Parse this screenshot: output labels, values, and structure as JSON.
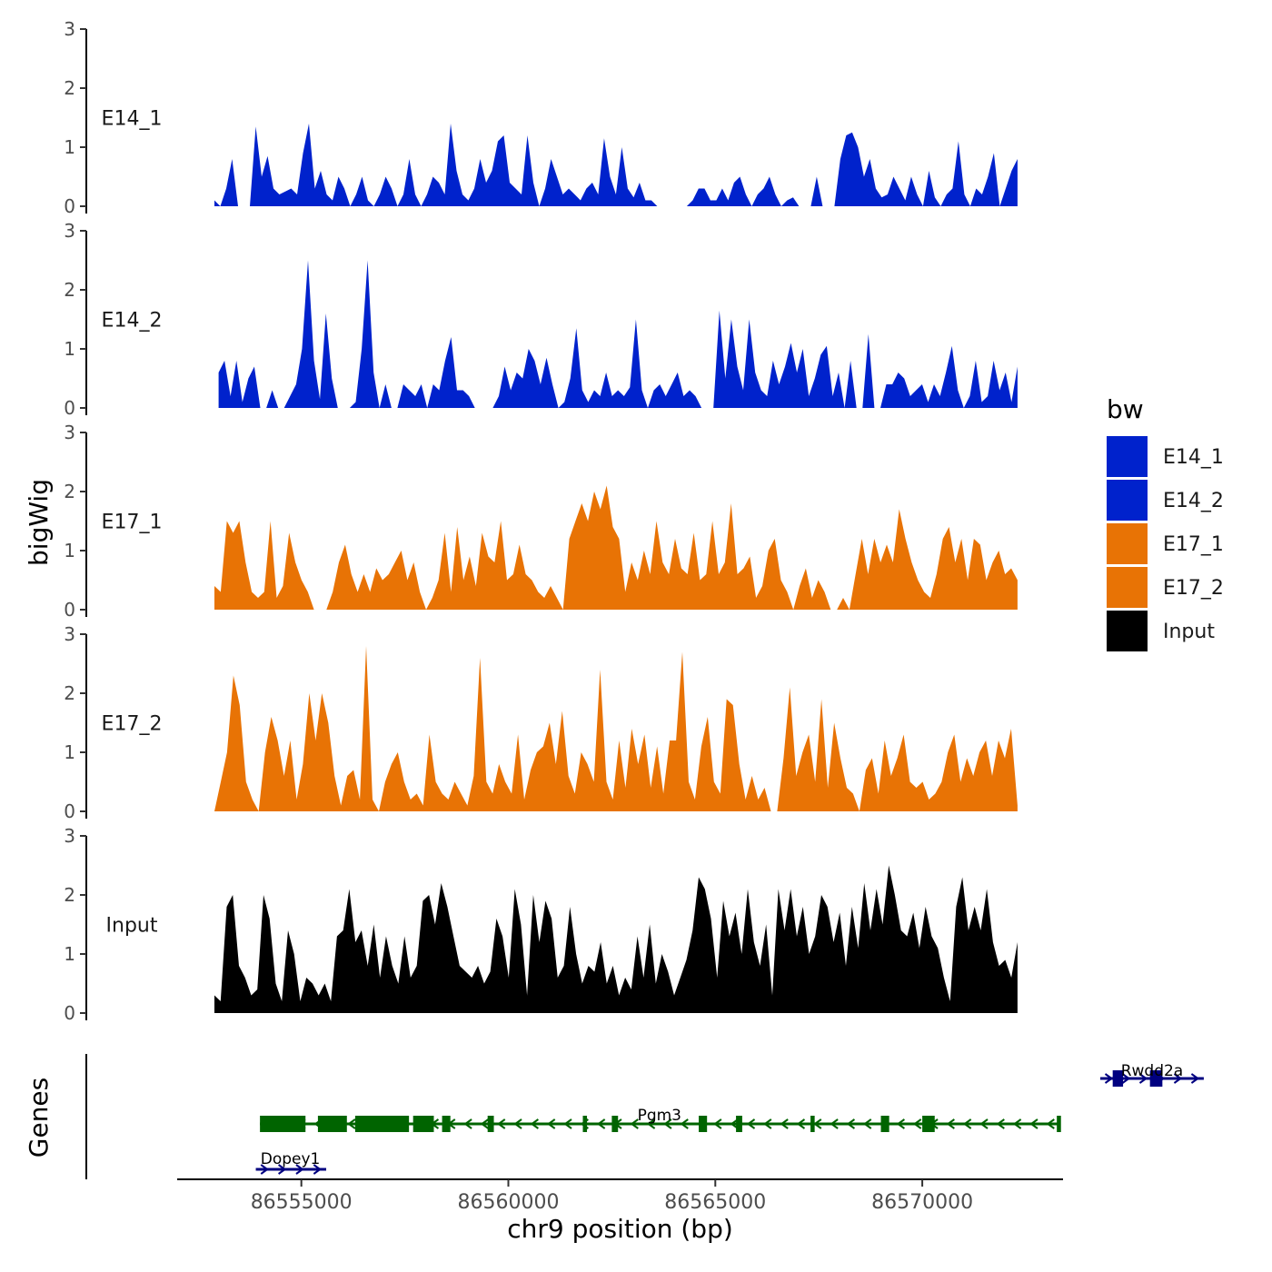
{
  "chart_data": {
    "type": "area",
    "x_axis": {
      "label": "chr9 position (bp)",
      "range": [
        86552000,
        86573400
      ],
      "ticks": [
        86555000,
        86560000,
        86565000,
        86570000
      ],
      "tick_labels": [
        "86555000",
        "86560000",
        "86565000",
        "86570000"
      ]
    },
    "y_axis": {
      "label": "bigWig",
      "range": [
        0,
        3
      ],
      "ticks": [
        0,
        1,
        2,
        3
      ],
      "tick_labels": [
        "0",
        "1",
        "2",
        "3"
      ]
    },
    "legend": {
      "title": "bw",
      "position": "right",
      "entries": [
        {
          "label": "E14_1",
          "color": "#0022CC"
        },
        {
          "label": "E14_2",
          "color": "#0022CC"
        },
        {
          "label": "E17_1",
          "color": "#E87305"
        },
        {
          "label": "E17_2",
          "color": "#E87305"
        },
        {
          "label": "Input",
          "color": "#000000"
        }
      ]
    },
    "series": [
      {
        "name": "E14_1",
        "color": "#0022CC",
        "x_start": 86552900,
        "x_end": 86572300,
        "values": [
          0.1,
          0,
          0.3,
          0.8,
          0,
          0,
          0,
          1.35,
          0.5,
          0.85,
          0.3,
          0.2,
          0.25,
          0.3,
          0.2,
          0.9,
          1.4,
          0.3,
          0.6,
          0.2,
          0.1,
          0.5,
          0.3,
          0,
          0.2,
          0.5,
          0.1,
          0,
          0.2,
          0.5,
          0.3,
          0,
          0.2,
          0.8,
          0.2,
          0,
          0.2,
          0.5,
          0.4,
          0.2,
          1.4,
          0.6,
          0.2,
          0.1,
          0.3,
          0.8,
          0.4,
          0.6,
          1.1,
          1.2,
          0.4,
          0.3,
          0.2,
          1.2,
          0.4,
          0,
          0.3,
          0.8,
          0.5,
          0.2,
          0.3,
          0.2,
          0.1,
          0.3,
          0.4,
          0.2,
          1.15,
          0.5,
          0.2,
          1.0,
          0.3,
          0.15,
          0.4,
          0.1,
          0.1,
          0,
          0,
          0,
          0,
          0,
          0,
          0.1,
          0.3,
          0.3,
          0.1,
          0.1,
          0.3,
          0.1,
          0.4,
          0.5,
          0.2,
          0,
          0.2,
          0.3,
          0.5,
          0.2,
          0,
          0.1,
          0.15,
          0,
          0,
          0,
          0.5,
          0,
          0,
          0,
          0.8,
          1.2,
          1.25,
          1.0,
          0.5,
          0.8,
          0.3,
          0.15,
          0.2,
          0.5,
          0.3,
          0.1,
          0.5,
          0.2,
          0,
          0.6,
          0.15,
          0,
          0.2,
          0.3,
          1.1,
          0.2,
          0,
          0.3,
          0.2,
          0.5,
          0.9,
          0,
          0.3,
          0.6,
          0.8
        ]
      },
      {
        "name": "E14_2",
        "color": "#0022CC",
        "x_start": 86553000,
        "x_end": 86572300,
        "values": [
          0.6,
          0.8,
          0.2,
          0.8,
          0.1,
          0.5,
          0.7,
          0,
          0,
          0.3,
          0,
          0,
          0.2,
          0.4,
          1.0,
          2.5,
          0.8,
          0.15,
          1.6,
          0.5,
          0,
          0,
          0,
          0.1,
          1.0,
          2.5,
          0.6,
          0,
          0.4,
          0,
          0,
          0.4,
          0.3,
          0.2,
          0.4,
          0,
          0.4,
          0.3,
          0.8,
          1.2,
          0.3,
          0.3,
          0.2,
          0,
          0,
          0,
          0,
          0.2,
          0.7,
          0.3,
          0.6,
          0.5,
          1.0,
          0.8,
          0.4,
          0.85,
          0.4,
          0,
          0.1,
          0.5,
          1.35,
          0.3,
          0.1,
          0.3,
          0.2,
          0.6,
          0.2,
          0.3,
          0.2,
          0.35,
          1.5,
          0.3,
          0,
          0.3,
          0.4,
          0.2,
          0.4,
          0.6,
          0.2,
          0.3,
          0.2,
          0,
          0,
          0,
          1.65,
          0.5,
          1.5,
          0.7,
          0.3,
          1.5,
          0.6,
          0.3,
          0.2,
          0.8,
          0.4,
          0.7,
          1.1,
          0.6,
          1.0,
          0.2,
          0.5,
          0.9,
          1.05,
          0.2,
          0.6,
          0,
          0.8,
          0,
          0,
          1.25,
          0,
          0,
          0.4,
          0.4,
          0.6,
          0.5,
          0.2,
          0.3,
          0.4,
          0.1,
          0.4,
          0.2,
          0.6,
          1.05,
          0.3,
          0,
          0.2,
          0.8,
          0.1,
          0.2,
          0.8,
          0.3,
          0.6,
          0.1,
          0.7
        ]
      },
      {
        "name": "E17_1",
        "color": "#E87305",
        "x_start": 86552900,
        "x_end": 86572300,
        "values": [
          0.4,
          0.3,
          1.5,
          1.3,
          1.5,
          0.8,
          0.3,
          0.2,
          0.3,
          1.5,
          0.2,
          0.4,
          1.3,
          0.8,
          0.5,
          0.3,
          0,
          0,
          0,
          0.3,
          0.8,
          1.1,
          0.6,
          0.3,
          0.6,
          0.3,
          0.7,
          0.5,
          0.6,
          0.8,
          1.0,
          0.5,
          0.8,
          0.3,
          0,
          0.2,
          0.5,
          1.3,
          0.3,
          1.4,
          0.5,
          0.9,
          0.4,
          1.3,
          0.9,
          0.8,
          1.5,
          0.5,
          0.6,
          1.1,
          0.6,
          0.5,
          0.3,
          0.2,
          0.4,
          0.2,
          0,
          1.2,
          1.5,
          1.8,
          1.5,
          2.0,
          1.7,
          2.1,
          1.4,
          1.2,
          0.3,
          0.8,
          0.5,
          1.0,
          0.6,
          1.5,
          0.8,
          0.6,
          1.2,
          0.7,
          0.6,
          1.3,
          0.5,
          0.6,
          1.5,
          0.6,
          0.8,
          1.8,
          0.6,
          0.7,
          0.9,
          0.2,
          0.4,
          1.0,
          1.2,
          0.5,
          0.3,
          0,
          0.4,
          0.7,
          0.2,
          0.5,
          0.3,
          0,
          0,
          0.2,
          0,
          0.6,
          1.2,
          0.6,
          1.2,
          0.8,
          1.1,
          0.8,
          1.7,
          1.2,
          0.8,
          0.5,
          0.3,
          0.2,
          0.6,
          1.2,
          1.4,
          0.8,
          1.2,
          0.5,
          1.2,
          1.1,
          0.5,
          0.8,
          1.0,
          0.6,
          0.7,
          0.5
        ]
      },
      {
        "name": "E17_2",
        "color": "#E87305",
        "x_start": 86552900,
        "x_end": 86572300,
        "values": [
          0,
          0.5,
          1.0,
          2.3,
          1.8,
          0.5,
          0.2,
          0,
          1.0,
          1.6,
          1.2,
          0.6,
          1.2,
          0.2,
          0.8,
          2.0,
          1.2,
          2.0,
          1.5,
          0.6,
          0.1,
          0.6,
          0.7,
          0.2,
          2.8,
          0.2,
          0,
          0.5,
          0.8,
          1.0,
          0.5,
          0.2,
          0.3,
          0.1,
          1.3,
          0.5,
          0.3,
          0.2,
          0.5,
          0.3,
          0.1,
          0.6,
          2.6,
          0.5,
          0.3,
          0.8,
          0.5,
          0.3,
          1.3,
          0.2,
          0.7,
          1.0,
          1.1,
          1.5,
          0.8,
          1.7,
          0.6,
          0.3,
          1.0,
          0.8,
          0.5,
          2.4,
          0.5,
          0.2,
          1.2,
          0.4,
          1.4,
          0.8,
          1.3,
          0.4,
          1.1,
          0.3,
          1.2,
          1.2,
          2.7,
          0.5,
          0.2,
          1.1,
          1.6,
          0.5,
          0.3,
          1.9,
          1.8,
          0.8,
          0.2,
          0.6,
          0.2,
          0.4,
          0,
          0,
          0.9,
          2.1,
          0.6,
          1.0,
          1.3,
          0.5,
          1.9,
          0.4,
          1.5,
          0.9,
          0.4,
          0.3,
          0,
          0.7,
          0.9,
          0.3,
          1.2,
          0.6,
          0.9,
          1.3,
          0.5,
          0.4,
          0.5,
          0.2,
          0.3,
          0.5,
          1.0,
          1.3,
          0.5,
          0.9,
          0.6,
          1.0,
          1.2,
          0.6,
          1.2,
          0.9,
          1.4,
          0.1
        ]
      },
      {
        "name": "Input",
        "color": "#000000",
        "x_start": 86552900,
        "x_end": 86572300,
        "values": [
          0.3,
          0.2,
          1.8,
          2.0,
          0.8,
          0.6,
          0.3,
          0.4,
          2.0,
          1.6,
          0.5,
          0.2,
          1.4,
          1.0,
          0.2,
          0.6,
          0.5,
          0.3,
          0.5,
          0.2,
          1.3,
          1.4,
          2.1,
          1.2,
          1.4,
          0.8,
          1.5,
          0.6,
          1.3,
          0.8,
          0.5,
          1.3,
          0.6,
          0.8,
          1.9,
          2.0,
          1.5,
          2.2,
          1.8,
          1.3,
          0.8,
          0.7,
          0.6,
          0.8,
          0.5,
          0.7,
          1.6,
          1.3,
          0.6,
          2.1,
          1.5,
          0.3,
          2.0,
          1.2,
          1.9,
          1.6,
          0.6,
          0.8,
          1.8,
          1.0,
          0.5,
          0.8,
          0.7,
          1.2,
          0.5,
          0.8,
          0.3,
          0.6,
          0.4,
          1.3,
          0.6,
          1.5,
          0.5,
          1.0,
          0.7,
          0.3,
          0.6,
          0.9,
          1.4,
          2.3,
          2.1,
          1.6,
          0.6,
          1.9,
          1.3,
          1.7,
          1.0,
          2.1,
          1.2,
          0.8,
          1.5,
          0.3,
          2.1,
          1.4,
          2.1,
          1.3,
          1.8,
          1.0,
          1.3,
          2.0,
          1.8,
          1.2,
          1.7,
          0.8,
          1.8,
          1.1,
          2.2,
          1.4,
          2.1,
          1.5,
          2.5,
          2.0,
          1.4,
          1.3,
          1.7,
          1.1,
          1.8,
          1.3,
          1.1,
          0.6,
          0.2,
          1.8,
          2.3,
          1.4,
          1.8,
          1.4,
          2.1,
          1.2,
          0.8,
          0.9,
          0.6,
          1.2
        ]
      }
    ],
    "gene_track": {
      "label": "Genes",
      "genes": [
        {
          "name": "Rwdd2a",
          "start": 86574300,
          "end": 86576800,
          "strand": "+",
          "color": "#000080",
          "exons": [
            [
              86574600,
              86574850
            ],
            [
              86575500,
              86575800
            ]
          ]
        },
        {
          "name": "Pgm3",
          "start": 86554000,
          "end": 86573300,
          "strand": "-",
          "color": "#006400",
          "exons": [
            [
              86554000,
              86555100
            ],
            [
              86555400,
              86556100
            ],
            [
              86556300,
              86557600
            ],
            [
              86557700,
              86558200
            ],
            [
              86558400,
              86558600
            ],
            [
              86559500,
              86559650
            ],
            [
              86561800,
              86561900
            ],
            [
              86562500,
              86562650
            ],
            [
              86564600,
              86564800
            ],
            [
              86565500,
              86565650
            ],
            [
              86567300,
              86567400
            ],
            [
              86569000,
              86569200
            ],
            [
              86570000,
              86570300
            ],
            [
              86573250,
              86573350
            ]
          ]
        },
        {
          "name": "Dopey1",
          "start": 86553900,
          "end": 86555600,
          "strand": "+",
          "color": "#000080",
          "exons": []
        }
      ]
    }
  }
}
